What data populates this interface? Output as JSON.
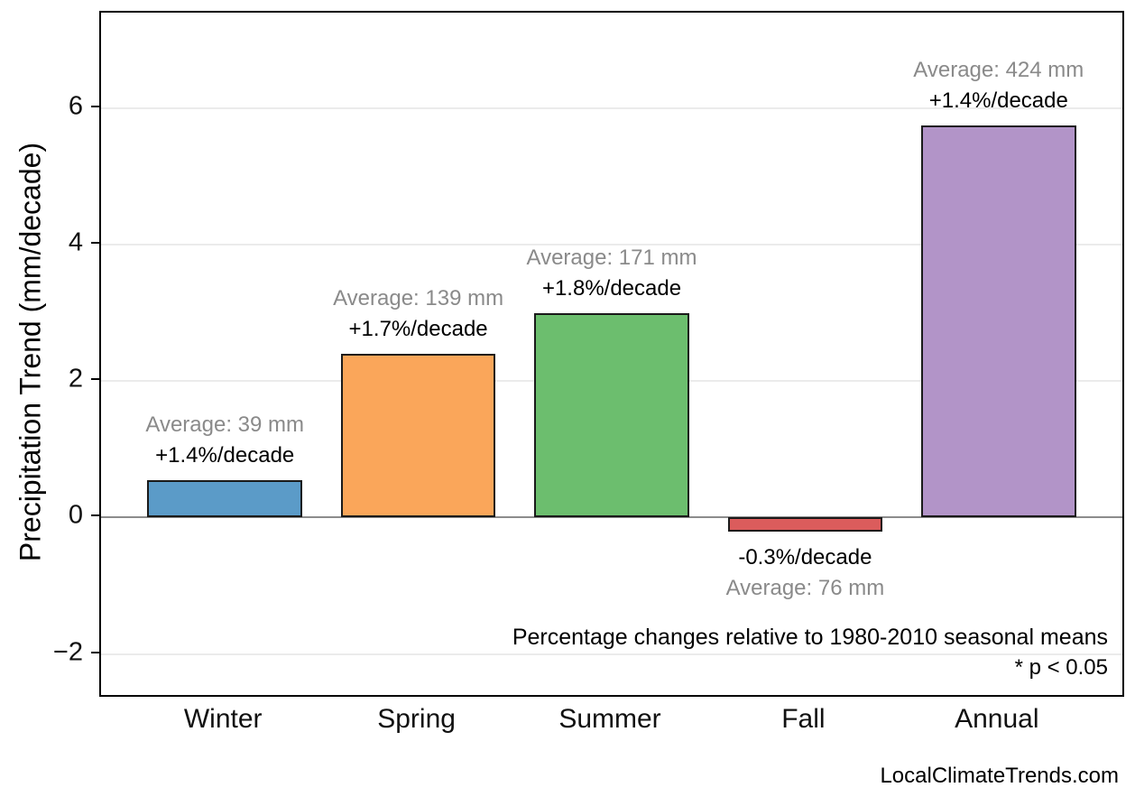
{
  "chart_data": {
    "type": "bar",
    "title": "",
    "xlabel": "",
    "ylabel": "Precipitation Trend (mm/decade)",
    "categories": [
      "Winter",
      "Spring",
      "Summer",
      "Fall",
      "Annual"
    ],
    "values": [
      0.55,
      2.4,
      3.0,
      -0.2,
      5.75
    ],
    "bar_colors": [
      "#5B9BC8",
      "#FAA65A",
      "#6CBE6E",
      "#DB5C5C",
      "#B294C8"
    ],
    "bar_edge_color": "#1a1a1a",
    "yticks": [
      -2,
      0,
      2,
      4,
      6
    ],
    "ylim": [
      -2.6,
      7.4
    ],
    "grid": true,
    "legend": "none",
    "annotations": [
      {
        "avg": "Average: 39 mm",
        "pct": "+1.4%/decade",
        "placement": "above"
      },
      {
        "avg": "Average: 139 mm",
        "pct": "+1.7%/decade",
        "placement": "above"
      },
      {
        "avg": "Average: 171 mm",
        "pct": "+1.8%/decade",
        "placement": "above"
      },
      {
        "avg": "Average: 76 mm",
        "pct": "-0.3%/decade",
        "placement": "below"
      },
      {
        "avg": "Average: 424 mm",
        "pct": "+1.4%/decade",
        "placement": "above"
      }
    ],
    "note_line1": "Percentage changes relative to 1980-2010 seasonal means",
    "note_line2": "* p < 0.05"
  },
  "colors": {
    "muted_text": "#8a8a8a",
    "zero_line": "#8c8c8c",
    "gridline": "#ebebeb"
  },
  "footer": {
    "watermark": "LocalClimateTrends.com"
  }
}
